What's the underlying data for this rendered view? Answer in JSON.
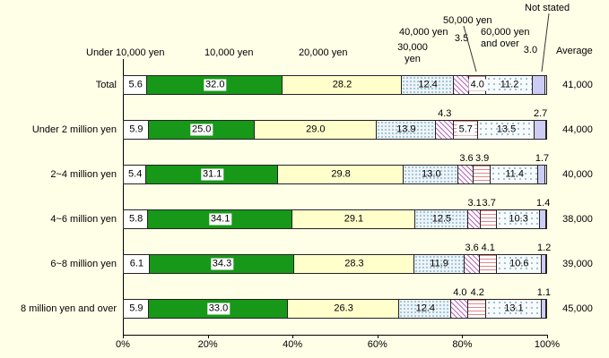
{
  "colors": {
    "background": "#ffffe8",
    "bar_green": "#189818",
    "bar_cream": "#ffffcc",
    "not_stated_lavender": "#ccccf5",
    "dot_blue": "#8fb8cc",
    "hatch_purple": "#bb66bb",
    "line_red": "#e08888"
  },
  "chart_data": {
    "type": "bar",
    "orientation": "horizontal",
    "stacked": true,
    "grid": false,
    "categories": [
      "Total",
      "Under 2 million yen",
      "2~4 million yen",
      "4~6 million yen",
      "6~8 million yen",
      "8 million yen and over"
    ],
    "series": [
      {
        "name": "Under 10,000 yen",
        "values": [
          5.6,
          5.9,
          5.4,
          5.8,
          6.1,
          5.9
        ]
      },
      {
        "name": "10,000 yen",
        "values": [
          32.0,
          25.0,
          31.1,
          34.1,
          34.3,
          33.0
        ]
      },
      {
        "name": "20,000 yen",
        "values": [
          28.2,
          29.0,
          29.8,
          29.1,
          28.3,
          26.3
        ]
      },
      {
        "name": "30,000 yen",
        "values": [
          12.4,
          13.9,
          13.0,
          12.5,
          11.9,
          12.4
        ]
      },
      {
        "name": "40,000 yen",
        "values": [
          3.5,
          4.3,
          3.6,
          3.1,
          3.6,
          4.0
        ]
      },
      {
        "name": "50,000 yen",
        "values": [
          4.0,
          5.7,
          3.9,
          3.7,
          4.1,
          4.2
        ]
      },
      {
        "name": "60,000 yen and over",
        "values": [
          11.2,
          13.5,
          11.4,
          10.3,
          10.6,
          13.1
        ]
      },
      {
        "name": "Not stated",
        "values": [
          3.0,
          2.7,
          1.7,
          1.4,
          1.2,
          1.1
        ]
      }
    ],
    "averages": {
      "label": "Average",
      "values": [
        "41,000",
        "44,000",
        "40,000",
        "38,000",
        "39,000",
        "45,000"
      ]
    },
    "x_axis": {
      "min": 0,
      "max": 100,
      "ticks": [
        "0%",
        "20%",
        "40%",
        "60%",
        "80%",
        "100%"
      ]
    }
  }
}
